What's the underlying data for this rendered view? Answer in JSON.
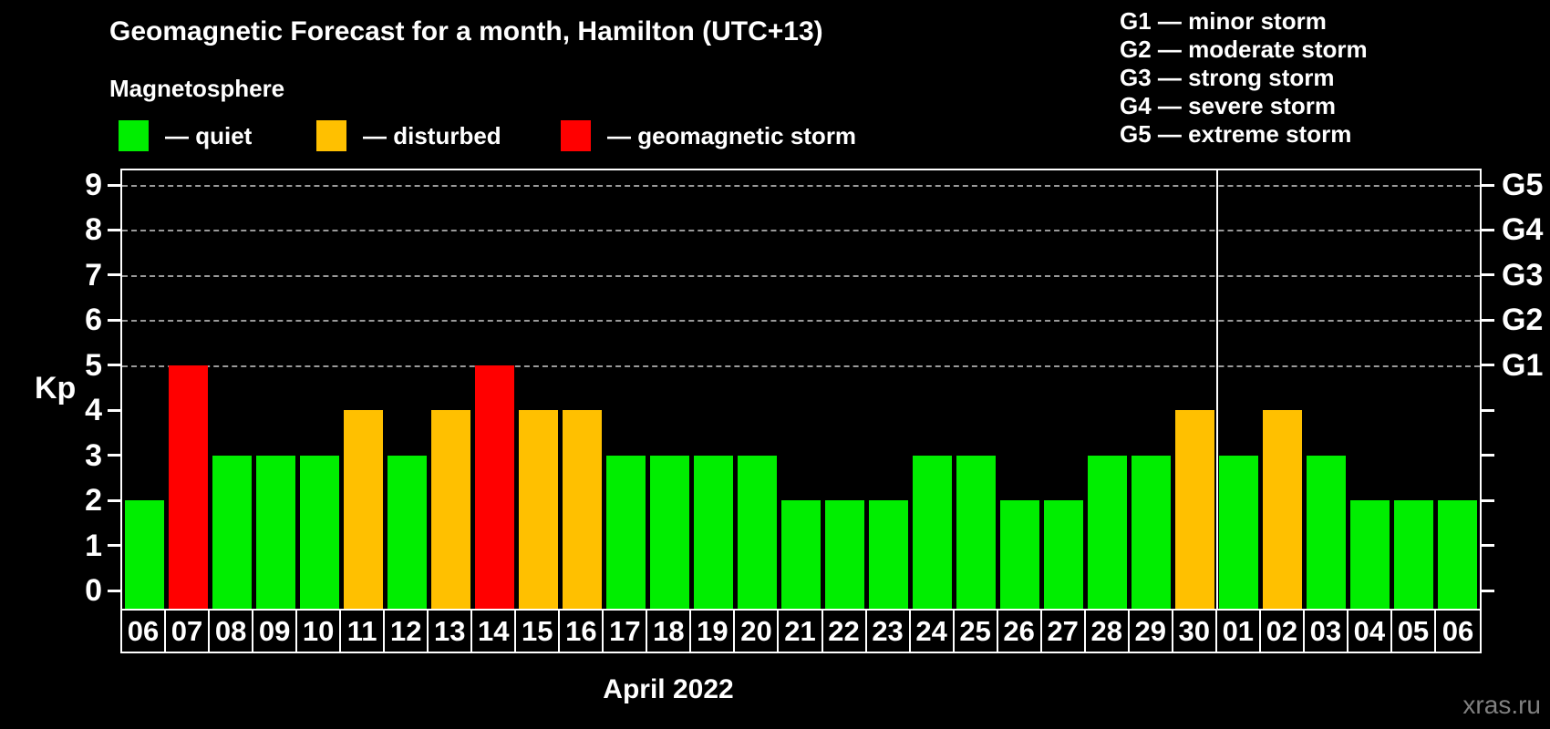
{
  "title": "Geomagnetic Forecast for a month, Hamilton (UTC+13)",
  "subtitle": "Magnetosphere",
  "legend": {
    "quiet": {
      "label": "— quiet",
      "color": "#00ee00"
    },
    "disturbed": {
      "label": "— disturbed",
      "color": "#ffc000"
    },
    "storm": {
      "label": "— geomagnetic storm",
      "color": "#ff0000"
    }
  },
  "g_legend": [
    "G1 — minor storm",
    "G2 — moderate storm",
    "G3 — strong storm",
    "G4 — severe storm",
    "G5 — extreme storm"
  ],
  "axes": {
    "y_label": "Kp",
    "y_ticks": [
      0,
      1,
      2,
      3,
      4,
      5,
      6,
      7,
      8,
      9
    ],
    "right_labels": [
      {
        "value": 5,
        "label": "G1"
      },
      {
        "value": 6,
        "label": "G2"
      },
      {
        "value": 7,
        "label": "G3"
      },
      {
        "value": 8,
        "label": "G4"
      },
      {
        "value": 9,
        "label": "G5"
      }
    ],
    "x_caption": "April 2022"
  },
  "watermark": "xras.ru",
  "chart_data": {
    "type": "bar",
    "title": "Geomagnetic Forecast for a month, Hamilton (UTC+13)",
    "ylabel": "Kp",
    "ylim": [
      -0.4,
      9.4
    ],
    "grid": "dashed horizontal lines at Kp 5,6,7,8,9 (G1..G5)",
    "legend_position": "top-left",
    "categories": [
      "06",
      "07",
      "08",
      "09",
      "10",
      "11",
      "12",
      "13",
      "14",
      "15",
      "16",
      "17",
      "18",
      "19",
      "20",
      "21",
      "22",
      "23",
      "24",
      "25",
      "26",
      "27",
      "28",
      "29",
      "30",
      "01",
      "02",
      "03",
      "04",
      "05",
      "06"
    ],
    "values": [
      2,
      5,
      3,
      3,
      3,
      4,
      3,
      4,
      5,
      4,
      4,
      3,
      3,
      3,
      3,
      2,
      2,
      2,
      3,
      3,
      2,
      2,
      3,
      3,
      4,
      3,
      4,
      3,
      2,
      2,
      2
    ],
    "statuses": [
      "quiet",
      "storm",
      "quiet",
      "quiet",
      "quiet",
      "disturbed",
      "quiet",
      "disturbed",
      "storm",
      "disturbed",
      "disturbed",
      "quiet",
      "quiet",
      "quiet",
      "quiet",
      "quiet",
      "quiet",
      "quiet",
      "quiet",
      "quiet",
      "quiet",
      "quiet",
      "quiet",
      "quiet",
      "disturbed",
      "quiet",
      "disturbed",
      "quiet",
      "quiet",
      "quiet",
      "quiet"
    ],
    "month_boundary_after_index": 24
  }
}
